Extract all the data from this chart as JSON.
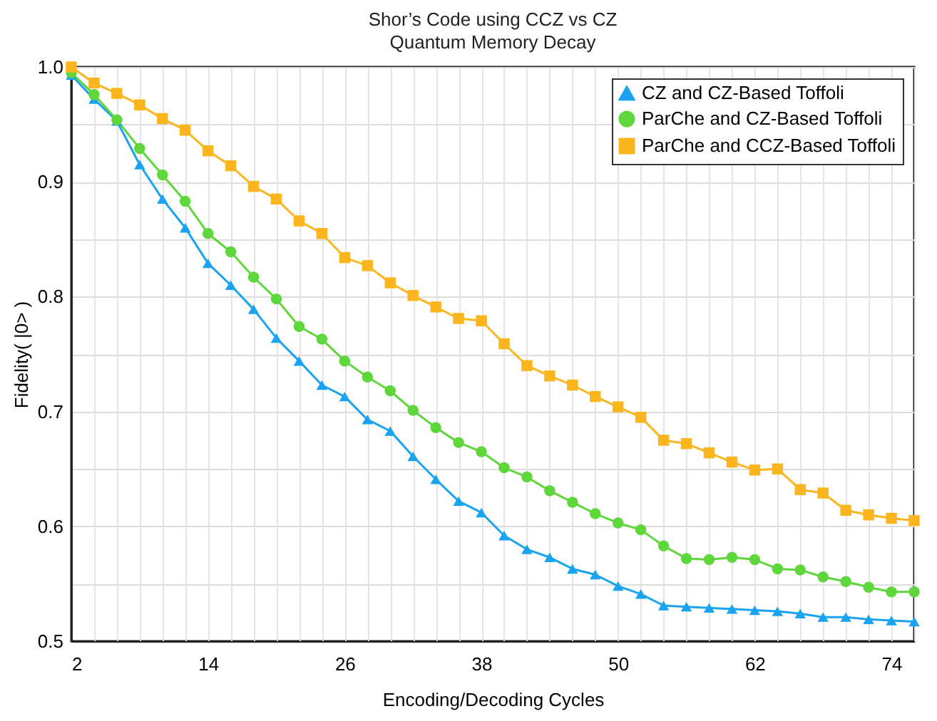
{
  "chart_data": {
    "type": "line",
    "title": "Shor’s Code using CCZ vs CZ",
    "subtitle": "Quantum Memory Decay",
    "xlabel": "Encoding/Decoding Cycles",
    "ylabel": "Fidelity( |0> )",
    "x": [
      2,
      4,
      6,
      8,
      10,
      12,
      14,
      16,
      18,
      20,
      22,
      24,
      26,
      28,
      30,
      32,
      34,
      36,
      38,
      40,
      42,
      44,
      46,
      48,
      50,
      52,
      54,
      56,
      58,
      60,
      62,
      64,
      66,
      68,
      70,
      72,
      74,
      76
    ],
    "series": [
      {
        "name": "CZ and CZ-Based Toffoli",
        "color": "#1aa3f0",
        "marker": "triangle",
        "values": [
          0.993,
          0.972,
          0.953,
          0.915,
          0.885,
          0.86,
          0.829,
          0.81,
          0.789,
          0.764,
          0.744,
          0.723,
          0.713,
          0.693,
          0.683,
          0.661,
          0.641,
          0.622,
          0.612,
          0.592,
          0.58,
          0.573,
          0.563,
          0.558,
          0.548,
          0.541,
          0.531,
          0.53,
          0.529,
          0.528,
          0.527,
          0.526,
          0.524,
          0.521,
          0.521,
          0.519,
          0.518,
          0.517
        ]
      },
      {
        "name": "ParChe and  CZ-Based Toffoli",
        "color": "#5fd63b",
        "marker": "circle",
        "values": [
          0.995,
          0.976,
          0.954,
          0.929,
          0.906,
          0.883,
          0.855,
          0.839,
          0.817,
          0.798,
          0.774,
          0.763,
          0.744,
          0.73,
          0.718,
          0.701,
          0.686,
          0.673,
          0.665,
          0.651,
          0.643,
          0.631,
          0.621,
          0.611,
          0.603,
          0.597,
          0.583,
          0.572,
          0.571,
          0.573,
          0.571,
          0.563,
          0.562,
          0.556,
          0.552,
          0.547,
          0.543,
          0.543
        ]
      },
      {
        "name": "ParChe and CCZ-Based Toffoli",
        "color": "#fbb51e",
        "marker": "square",
        "values": [
          1.0,
          0.986,
          0.977,
          0.967,
          0.955,
          0.945,
          0.927,
          0.914,
          0.896,
          0.885,
          0.866,
          0.855,
          0.834,
          0.827,
          0.812,
          0.801,
          0.791,
          0.781,
          0.779,
          0.759,
          0.74,
          0.731,
          0.723,
          0.713,
          0.704,
          0.695,
          0.675,
          0.672,
          0.664,
          0.656,
          0.649,
          0.65,
          0.632,
          0.629,
          0.614,
          0.61,
          0.607,
          0.605
        ]
      }
    ],
    "xlim": [
      2,
      76
    ],
    "xticks": [
      2,
      {
        "value": 4,
        "label": null
      },
      {
        "value": 6,
        "label": null
      },
      {
        "value": 8,
        "label": null
      },
      {
        "value": 10,
        "label": null
      },
      {
        "value": 12,
        "label": null
      },
      14,
      {
        "value": 16,
        "label": null
      },
      {
        "value": 18,
        "label": null
      },
      {
        "value": 20,
        "label": null
      },
      {
        "value": 22,
        "label": null
      },
      {
        "value": 24,
        "label": null
      },
      26,
      {
        "value": 28,
        "label": null
      },
      {
        "value": 30,
        "label": null
      },
      {
        "value": 32,
        "label": null
      },
      {
        "value": 34,
        "label": null
      },
      {
        "value": 36,
        "label": null
      },
      38,
      {
        "value": 40,
        "label": null
      },
      {
        "value": 42,
        "label": null
      },
      {
        "value": 44,
        "label": null
      },
      {
        "value": 46,
        "label": null
      },
      {
        "value": 48,
        "label": null
      },
      50,
      {
        "value": 52,
        "label": null
      },
      {
        "value": 54,
        "label": null
      },
      {
        "value": 56,
        "label": null
      },
      {
        "value": 58,
        "label": null
      },
      {
        "value": 60,
        "label": null
      },
      62,
      {
        "value": 64,
        "label": null
      },
      {
        "value": 66,
        "label": null
      },
      {
        "value": 68,
        "label": null
      },
      {
        "value": 70,
        "label": null
      },
      {
        "value": 72,
        "label": null
      },
      74,
      {
        "value": 76,
        "label": null
      }
    ],
    "ylim": [
      0.5,
      1.0
    ],
    "yticks": [
      {
        "value": 0.5,
        "label": "0.5"
      },
      {
        "value": 0.55,
        "label": null
      },
      {
        "value": 0.6,
        "label": "0.6"
      },
      {
        "value": 0.65,
        "label": null
      },
      {
        "value": 0.7,
        "label": "0.7"
      },
      {
        "value": 0.75,
        "label": null
      },
      {
        "value": 0.8,
        "label": "0.8"
      },
      {
        "value": 0.85,
        "label": null
      },
      {
        "value": 0.9,
        "label": "0.9"
      },
      {
        "value": 0.95,
        "label": null
      },
      {
        "value": 1.0,
        "label": "1.0"
      }
    ],
    "grid": true,
    "legend": "top right",
    "line_style": "solid"
  }
}
